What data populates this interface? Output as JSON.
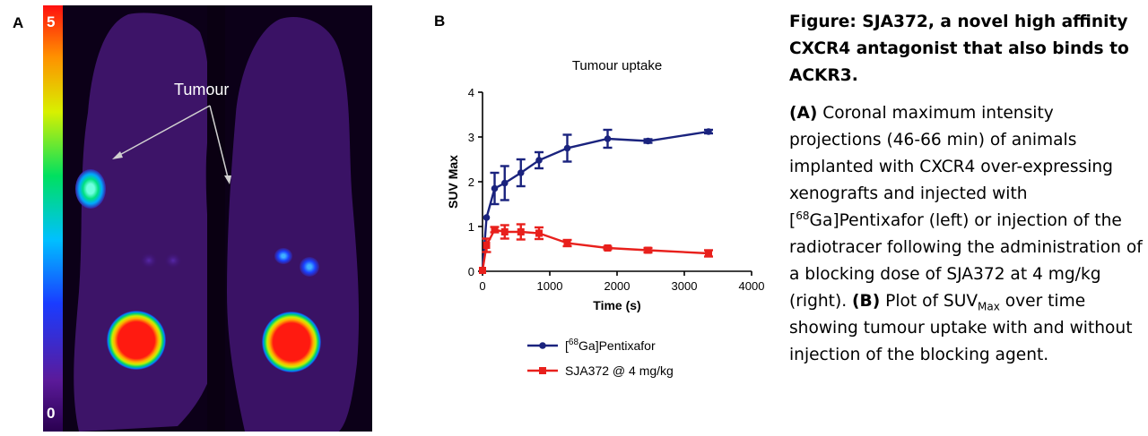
{
  "panel_a": {
    "letter": "A",
    "colorbar": {
      "max_label": "5",
      "min_label": "0"
    },
    "annotation": "Tumour"
  },
  "panel_b": {
    "letter": "B"
  },
  "chart_data": {
    "type": "line",
    "title": "Tumour uptake",
    "xlabel": "Time (s)",
    "ylabel": "SUV Max",
    "xlim": [
      0,
      4000
    ],
    "ylim": [
      0,
      4
    ],
    "xticks": [
      "0",
      "1000",
      "2000",
      "3000",
      "4000"
    ],
    "yticks": [
      "0",
      "1",
      "2",
      "3",
      "4"
    ],
    "grid": false,
    "legend_position": "bottom",
    "series": [
      {
        "name_prefix": "[",
        "name_sup": "68",
        "name_suffix": "Ga]Pentixafor",
        "color": "#1a237e",
        "marker": "circle",
        "points": [
          {
            "x": 0,
            "y": 0.02,
            "err": 0
          },
          {
            "x": 60,
            "y": 1.2,
            "err": 0
          },
          {
            "x": 180,
            "y": 1.85,
            "err": 0.35
          },
          {
            "x": 330,
            "y": 1.97,
            "err": 0.38
          },
          {
            "x": 570,
            "y": 2.2,
            "err": 0.3
          },
          {
            "x": 840,
            "y": 2.48,
            "err": 0.18
          },
          {
            "x": 1260,
            "y": 2.75,
            "err": 0.3
          },
          {
            "x": 1860,
            "y": 2.96,
            "err": 0.2
          },
          {
            "x": 2460,
            "y": 2.91,
            "err": 0.04
          },
          {
            "x": 3360,
            "y": 3.12,
            "err": 0.04
          }
        ]
      },
      {
        "name_prefix": "SJA372 @ 4 mg/kg",
        "name_sup": "",
        "name_suffix": "",
        "color": "#e8201c",
        "marker": "square",
        "points": [
          {
            "x": 0,
            "y": 0.02,
            "err": 0
          },
          {
            "x": 60,
            "y": 0.58,
            "err": 0.15
          },
          {
            "x": 180,
            "y": 0.93,
            "err": 0.06
          },
          {
            "x": 330,
            "y": 0.88,
            "err": 0.15
          },
          {
            "x": 570,
            "y": 0.88,
            "err": 0.17
          },
          {
            "x": 840,
            "y": 0.85,
            "err": 0.13
          },
          {
            "x": 1260,
            "y": 0.63,
            "err": 0.07
          },
          {
            "x": 1860,
            "y": 0.52,
            "err": 0.03
          },
          {
            "x": 2460,
            "y": 0.47,
            "err": 0.05
          },
          {
            "x": 3360,
            "y": 0.4,
            "err": 0.07
          }
        ]
      }
    ]
  },
  "caption": {
    "title": "Figure: SJA372, a novel high affinity CXCR4 antagonist that also binds to ACKR3.",
    "a_label": "(A)",
    "a_text_1": " Coronal maximum intensity projections (46-66 min) of animals implanted with CXCR4 over-expressing xenografts and injected with [",
    "a_sup": "68",
    "a_text_2": "Ga]Pentixafor (left) or injection of the radiotracer following the administration of a blocking dose of SJA372 at 4 mg/kg (right).",
    "b_label": "(B)",
    "b_text_1": " Plot of SUV",
    "b_sub": "Max",
    "b_text_2": " over time showing tumour uptake with and without injection of the blocking agent."
  }
}
